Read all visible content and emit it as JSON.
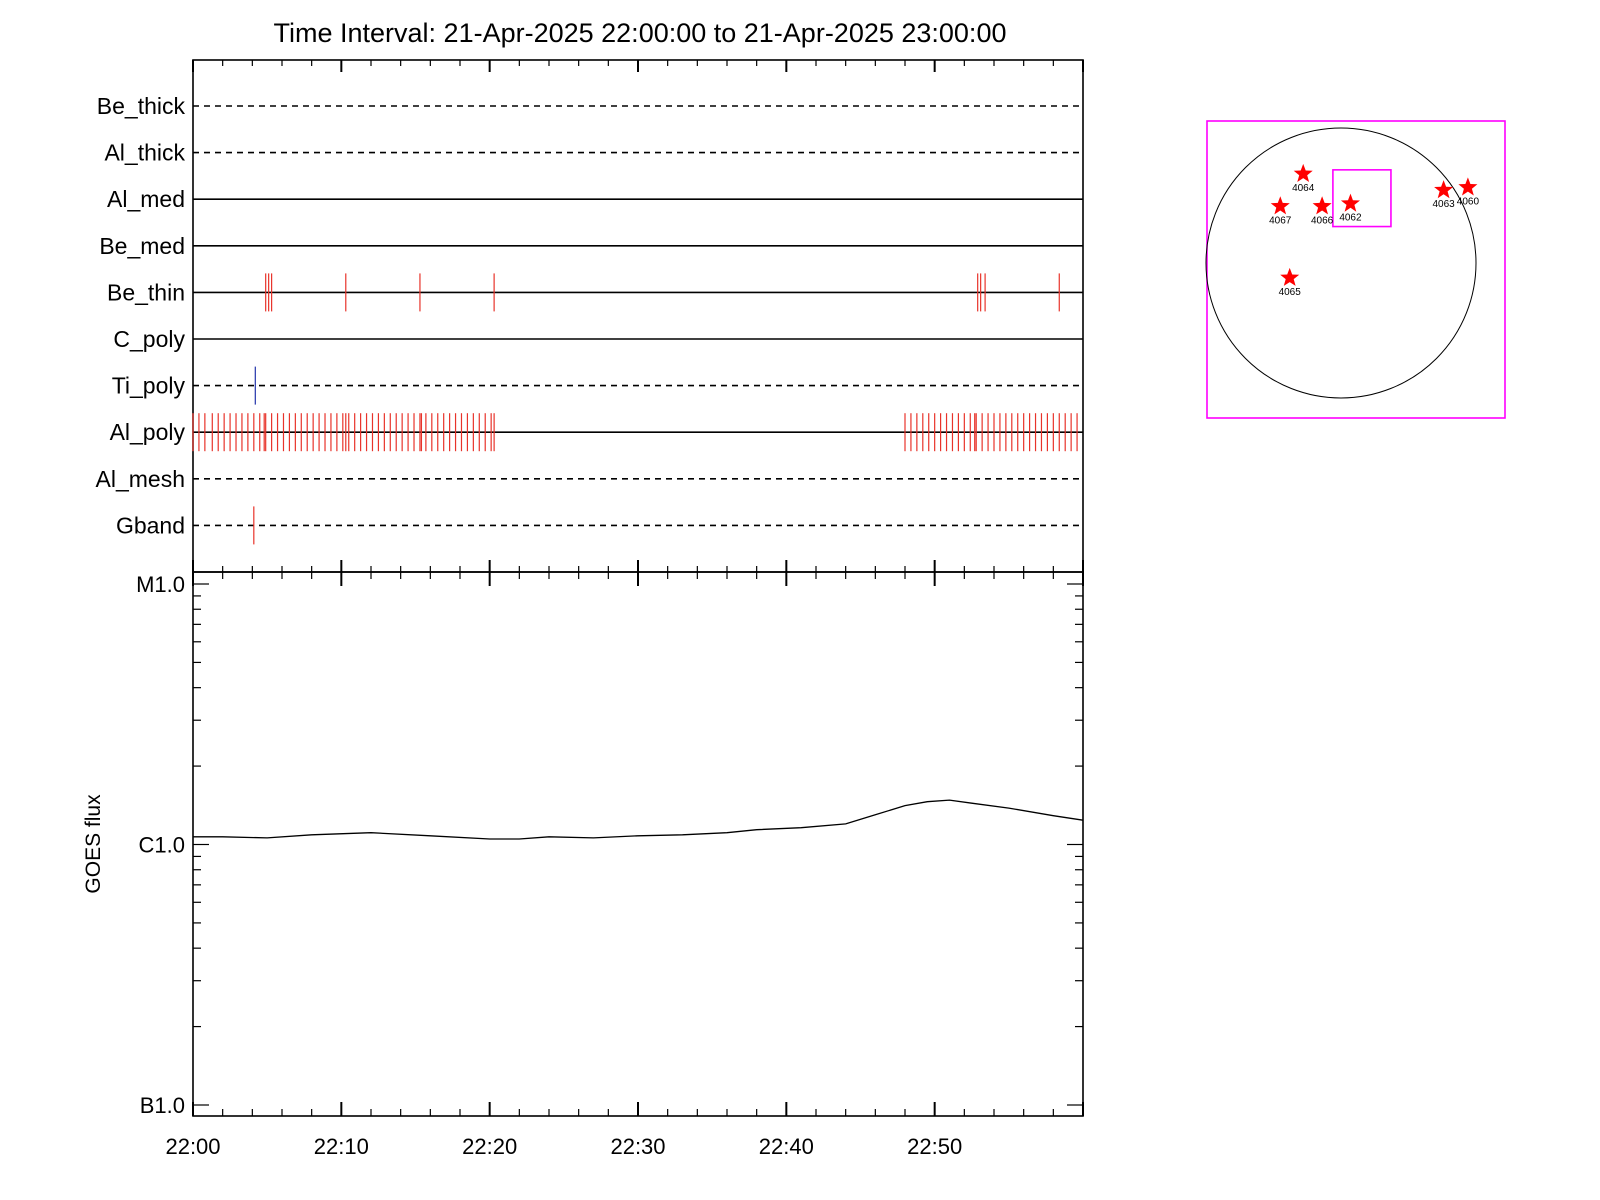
{
  "chart_data": [
    {
      "type": "timeline",
      "title": "Time Interval: 21-Apr-2025 22:00:00 to 21-Apr-2025 23:00:00",
      "x_range_minutes": [
        0,
        60
      ],
      "x_tick_labels": [
        "22:00",
        "22:10",
        "22:20",
        "22:30",
        "22:40",
        "22:50"
      ],
      "x_tick_values": [
        0,
        10,
        20,
        30,
        40,
        50
      ],
      "rows": [
        {
          "name": "Be_thick",
          "line": "dashed",
          "events": []
        },
        {
          "name": "Al_thick",
          "line": "dashed",
          "events": []
        },
        {
          "name": "Al_med",
          "line": "solid",
          "events": []
        },
        {
          "name": "Be_med",
          "line": "solid",
          "events": []
        },
        {
          "name": "Be_thin",
          "line": "solid",
          "color": "#e8332a",
          "events": [
            4.9,
            5.1,
            5.3,
            10.3,
            15.3,
            20.3,
            52.9,
            53.1,
            53.4,
            58.4
          ]
        },
        {
          "name": "C_poly",
          "line": "solid",
          "events": []
        },
        {
          "name": "Ti_poly",
          "line": "dashed",
          "color": "#2233aa",
          "events": [
            4.2
          ]
        },
        {
          "name": "Al_poly",
          "line": "solid",
          "color": "#e8332a",
          "events": [
            0.0,
            0.4,
            0.8,
            1.3,
            1.7,
            2.1,
            2.5,
            2.9,
            3.3,
            3.7,
            4.1,
            4.5,
            4.8,
            4.9,
            5.3,
            5.7,
            6.1,
            6.5,
            6.9,
            7.3,
            7.7,
            8.1,
            8.5,
            8.9,
            9.3,
            9.7,
            10.1,
            10.3,
            10.5,
            10.9,
            11.3,
            11.7,
            12.1,
            12.5,
            12.9,
            13.3,
            13.7,
            14.1,
            14.5,
            14.9,
            15.3,
            15.4,
            15.7,
            16.1,
            16.5,
            16.9,
            17.3,
            17.7,
            18.1,
            18.5,
            18.9,
            19.3,
            19.7,
            20.1,
            20.3,
            48.0,
            48.4,
            48.8,
            49.2,
            49.6,
            50.0,
            50.4,
            50.8,
            51.2,
            51.6,
            52.0,
            52.4,
            52.7,
            52.8,
            53.2,
            53.6,
            54.0,
            54.4,
            54.8,
            55.2,
            55.6,
            56.0,
            56.4,
            56.8,
            57.2,
            57.6,
            58.0,
            58.4,
            58.8,
            59.2,
            59.6
          ]
        },
        {
          "name": "Al_mesh",
          "line": "dashed",
          "events": []
        },
        {
          "name": "Gband",
          "line": "dashed",
          "color": "#e8332a",
          "events": [
            4.1
          ]
        }
      ]
    },
    {
      "type": "line",
      "ylabel": "GOES flux",
      "y_scale": "log",
      "y_tick_labels": [
        "M1.0",
        "C1.0",
        "B1.0"
      ],
      "y_tick_values": [
        1e-05,
        1e-06,
        1e-07
      ],
      "ylim": [
        1e-07,
        1e-05
      ],
      "x_tick_labels": [
        "22:00",
        "22:10",
        "22:20",
        "22:30",
        "22:40",
        "22:50"
      ],
      "x_tick_values": [
        0,
        10,
        20,
        30,
        40,
        50
      ],
      "xlim": [
        0,
        60
      ],
      "series": [
        {
          "x": [
            0,
            2,
            5,
            8,
            12,
            16,
            20,
            22,
            24,
            27,
            30,
            33,
            36,
            38,
            41,
            44,
            46,
            48,
            49.5,
            51,
            52.5,
            55,
            58,
            60
          ],
          "y": [
            1.07e-06,
            1.07e-06,
            1.06e-06,
            1.09e-06,
            1.11e-06,
            1.08e-06,
            1.05e-06,
            1.05e-06,
            1.07e-06,
            1.06e-06,
            1.08e-06,
            1.09e-06,
            1.11e-06,
            1.14e-06,
            1.16e-06,
            1.2e-06,
            1.3e-06,
            1.41e-06,
            1.46e-06,
            1.48e-06,
            1.44e-06,
            1.38e-06,
            1.29e-06,
            1.24e-06
          ],
          "color": "#000000"
        }
      ]
    },
    {
      "type": "scatter",
      "plot": "solar-disk",
      "frame_color": "#ff00ff",
      "fov_color": "#ff00ff",
      "marker": "star",
      "marker_color": "#ff0000",
      "points": [
        {
          "label": "4064",
          "x": -0.28,
          "y": 0.66
        },
        {
          "label": "4067",
          "x": -0.45,
          "y": 0.42
        },
        {
          "label": "4066",
          "x": -0.14,
          "y": 0.42
        },
        {
          "label": "4062",
          "x": 0.07,
          "y": 0.44
        },
        {
          "label": "4063",
          "x": 0.76,
          "y": 0.54
        },
        {
          "label": "4060",
          "x": 0.94,
          "y": 0.56
        },
        {
          "label": "4065",
          "x": -0.38,
          "y": -0.11
        }
      ],
      "fov_box": {
        "x0": -0.06,
        "x1": 0.37,
        "y0": 0.27,
        "y1": 0.69
      }
    }
  ]
}
